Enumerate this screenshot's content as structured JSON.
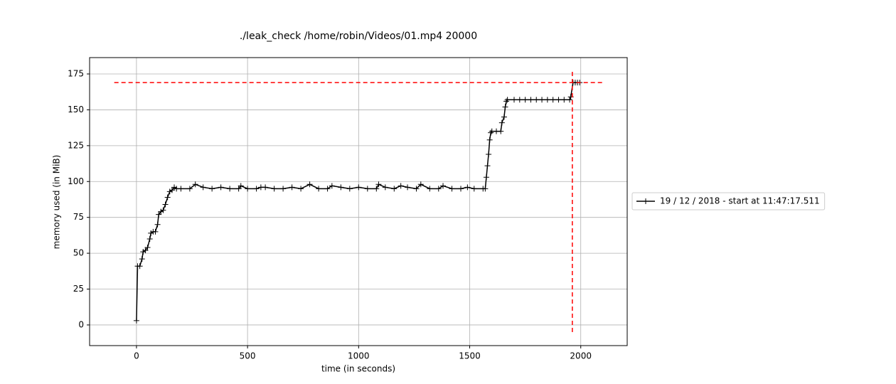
{
  "chart_data": {
    "type": "line",
    "title": "./leak_check /home/robin/Videos/01.mp4 20000",
    "x_label": "time (in seconds)",
    "y_label": "memory used (in MiB)",
    "xlim": [
      -211,
      2209
    ],
    "ylim": [
      -14.4,
      186.4
    ],
    "xticks": [
      0,
      500,
      1000,
      1500,
      2000
    ],
    "yticks": [
      0,
      25,
      50,
      75,
      100,
      125,
      150,
      175
    ],
    "grid": true,
    "legend": "right",
    "series": [
      {
        "name": "19 / 12 / 2018 - start at 11:47:17.511",
        "color": "#000000",
        "x": [
          0,
          5,
          15,
          25,
          30,
          40,
          50,
          60,
          65,
          75,
          85,
          95,
          100,
          110,
          120,
          130,
          140,
          150,
          160,
          170,
          180,
          200,
          240,
          265,
          300,
          340,
          380,
          420,
          460,
          470,
          500,
          540,
          560,
          580,
          620,
          660,
          700,
          740,
          780,
          820,
          860,
          880,
          920,
          960,
          1000,
          1040,
          1080,
          1090,
          1120,
          1160,
          1190,
          1220,
          1260,
          1280,
          1320,
          1360,
          1380,
          1420,
          1460,
          1490,
          1520,
          1560,
          1570,
          1575,
          1580,
          1585,
          1590,
          1595,
          1600,
          1620,
          1640,
          1645,
          1655,
          1660,
          1665,
          1670,
          1700,
          1725,
          1750,
          1775,
          1800,
          1825,
          1850,
          1875,
          1900,
          1925,
          1950,
          1955,
          1965,
          1975,
          1985,
          1995
        ],
        "values": [
          3,
          41,
          41,
          46,
          51,
          52,
          54,
          60,
          64,
          65,
          65,
          70,
          77,
          79,
          80,
          84,
          89,
          93,
          94,
          96,
          95,
          95,
          95,
          98,
          96,
          95,
          96,
          95,
          95,
          97,
          95,
          95,
          96,
          96,
          95,
          95,
          96,
          95,
          98,
          95,
          95,
          97,
          96,
          95,
          96,
          95,
          95,
          98,
          96,
          95,
          97,
          96,
          95,
          98,
          95,
          95,
          97,
          95,
          95,
          96,
          95,
          95,
          95,
          103,
          111,
          119,
          129,
          134,
          135,
          135,
          135,
          141,
          145,
          152,
          156,
          157,
          157,
          157,
          157,
          157,
          157,
          157,
          157,
          157,
          157,
          157,
          157,
          159,
          169,
          169,
          169,
          169
        ]
      }
    ],
    "reference_lines": [
      {
        "orientation": "horizontal",
        "y": 169,
        "xmin": -100,
        "xmax": 2100,
        "color": "#ff0000"
      },
      {
        "orientation": "vertical",
        "x": 1962,
        "ymin": -5,
        "ymax": 177,
        "color": "#ff0000"
      }
    ]
  }
}
